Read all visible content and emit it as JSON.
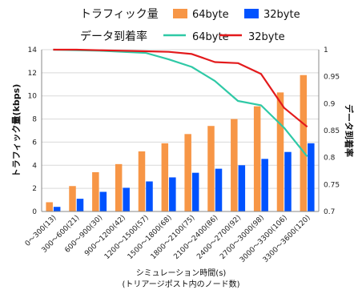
{
  "chart_data": {
    "type": "bar+line",
    "categories": [
      "0～300(13)",
      "300～600(21)",
      "600～900(30)",
      "900～1200(42)",
      "1200～1500(57)",
      "1500～1800(68)",
      "1800～2100(75)",
      "2100～2400(86)",
      "2400～2700(92)",
      "2700～3000(98)",
      "3000～3300(106)",
      "3300～3600(120)"
    ],
    "bar_group_label": "トラフィック量",
    "line_group_label": "データ到着率",
    "bar_series": [
      {
        "name": "64byte",
        "color": "#f79646",
        "values": [
          0.8,
          2.2,
          3.4,
          4.1,
          5.2,
          5.9,
          6.7,
          7.4,
          8.0,
          9.1,
          10.3,
          11.8
        ]
      },
      {
        "name": "32byte",
        "color": "#0052ff",
        "values": [
          0.4,
          1.1,
          1.7,
          2.05,
          2.6,
          2.95,
          3.35,
          3.7,
          4.0,
          4.55,
          5.15,
          5.9
        ]
      }
    ],
    "line_series": [
      {
        "name": "64byte",
        "color": "#2fc9a6",
        "values": [
          1.0,
          0.999,
          0.998,
          0.996,
          0.994,
          0.982,
          0.968,
          0.942,
          0.905,
          0.897,
          0.855,
          0.802
        ]
      },
      {
        "name": "32byte",
        "color": "#e31a1c",
        "values": [
          1.0,
          1.0,
          0.999,
          0.998,
          0.997,
          0.996,
          0.992,
          0.977,
          0.975,
          0.955,
          0.892,
          0.857
        ]
      }
    ],
    "ylabel_left": "トラフィック量(kbps)",
    "ylabel_right": "データ到着率",
    "xlabel_line1": "シミュレーション時間(s)",
    "xlabel_line2": "(トリアージポスト内のノード数)",
    "ylim_left": [
      0,
      14
    ],
    "yticks_left": [
      0,
      2,
      4,
      6,
      8,
      10,
      12,
      14
    ],
    "ylim_right": [
      0.7,
      1.0
    ],
    "yticks_right": [
      "0.7",
      "0.75",
      "0.8",
      "0.85",
      "0.9",
      "0.95",
      "1"
    ],
    "grid": true,
    "legend_position": "top"
  }
}
